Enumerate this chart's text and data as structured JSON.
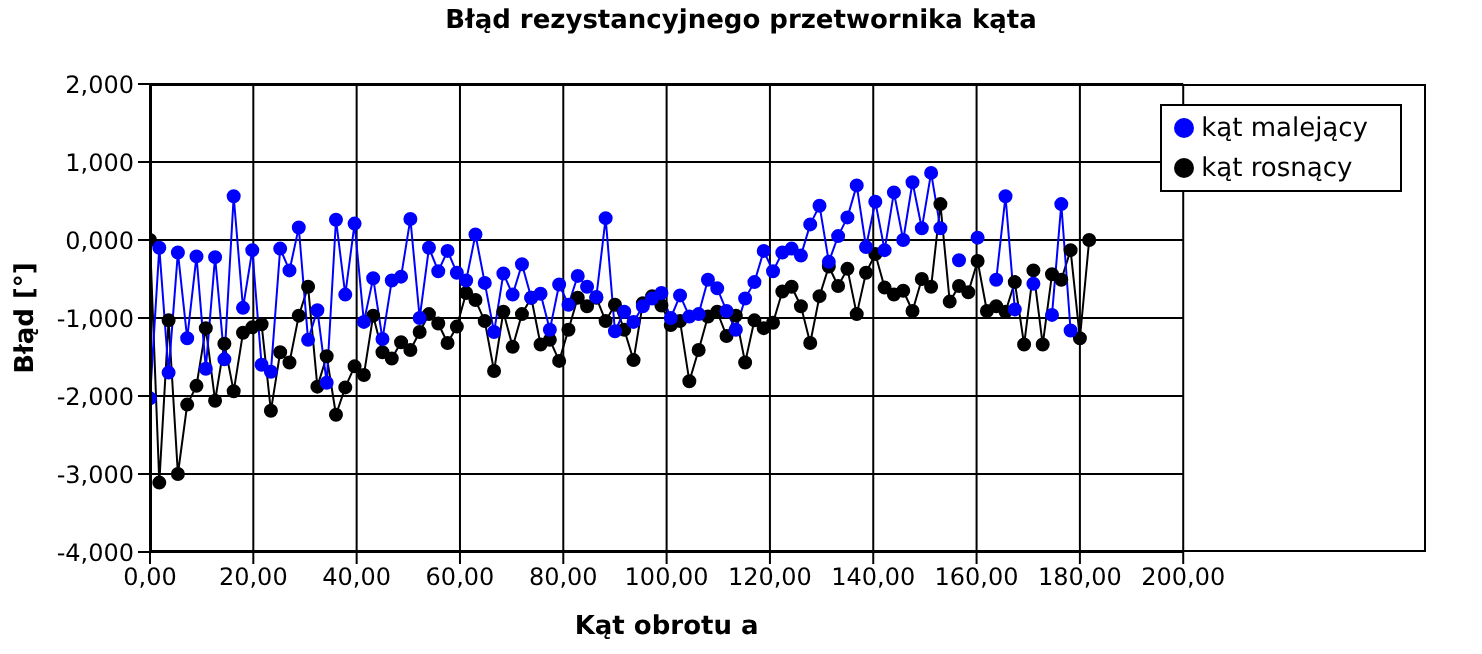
{
  "chart_data": {
    "type": "line",
    "title": "Błąd rezystancyjnego przetwornika kąta",
    "xlabel": "Kąt obrotu a",
    "ylabel": "Błąd [°]",
    "x": [
      0,
      1.8,
      3.6,
      5.4,
      7.2,
      9,
      10.8,
      12.6,
      14.4,
      16.2,
      18,
      19.8,
      21.6,
      23.4,
      25.2,
      27,
      28.8,
      30.6,
      32.4,
      34.2,
      36,
      37.8,
      39.6,
      41.4,
      43.2,
      45,
      46.8,
      48.6,
      50.4,
      52.2,
      54,
      55.8,
      57.6,
      59.4,
      61.2,
      63,
      64.8,
      66.6,
      68.4,
      70.2,
      72,
      73.8,
      75.6,
      77.4,
      79.2,
      81,
      82.8,
      84.6,
      86.4,
      88.2,
      90,
      91.8,
      93.6,
      95.4,
      97.2,
      99,
      100.8,
      102.6,
      104.4,
      106.2,
      108,
      109.8,
      111.6,
      113.4,
      115.2,
      117,
      118.8,
      120.6,
      122.4,
      124.2,
      126,
      127.8,
      129.6,
      131.4,
      133.2,
      135,
      136.8,
      138.6,
      140.4,
      142.2,
      144,
      145.8,
      147.6,
      149.4,
      151.2,
      153,
      154.8,
      156.6,
      158.4,
      160.2,
      162,
      163.8,
      165.6,
      167.4,
      169.2,
      171,
      172.8,
      174.6,
      176.4,
      178.2,
      180,
      181.8
    ],
    "series": [
      {
        "name": "kąt rosnący",
        "color": "#000000",
        "values": [
          0,
          -3.11,
          -1.03,
          -3.0,
          -2.11,
          -1.87,
          -1.13,
          -2.06,
          -1.33,
          -1.94,
          -1.19,
          -1.12,
          -1.08,
          -2.19,
          -1.44,
          -1.57,
          -0.97,
          -0.6,
          -1.88,
          -1.49,
          -2.24,
          -1.89,
          -1.62,
          -1.73,
          -0.97,
          -1.44,
          -1.52,
          -1.31,
          -1.41,
          -1.18,
          -0.95,
          -1.07,
          -1.32,
          -1.11,
          -0.68,
          -0.77,
          -1.04,
          -1.68,
          -0.92,
          -1.37,
          -0.95,
          -0.74,
          -1.34,
          -1.28,
          -1.55,
          -1.15,
          -0.74,
          -0.85,
          -0.74,
          -1.04,
          -0.83,
          -1.15,
          -1.54,
          -0.81,
          -0.72,
          -0.84,
          -1.09,
          -1.04,
          -1.81,
          -1.41,
          -0.98,
          -0.92,
          -1.23,
          -0.97,
          -1.57,
          -1.03,
          -1.13,
          -1.06,
          -0.66,
          -0.6,
          -0.85,
          -1.32,
          -0.72,
          -0.34,
          -0.59,
          -0.37,
          -0.95,
          -0.42,
          -0.18,
          -0.61,
          -0.7,
          -0.65,
          -0.91,
          -0.5,
          -0.6,
          0.46,
          -0.79,
          -0.59,
          -0.67,
          -0.27,
          -0.91,
          -0.85,
          -0.92,
          -0.54,
          -1.34,
          -0.39,
          -1.34,
          -0.44,
          -0.51,
          -0.13,
          -1.26,
          0
        ]
      },
      {
        "name": "kąt malejący",
        "color": "#0000ff",
        "values": [
          -2.03,
          -0.1,
          -1.7,
          -0.16,
          -1.26,
          -0.21,
          -1.65,
          -0.22,
          -1.53,
          0.56,
          -0.87,
          -0.13,
          -1.6,
          -1.69,
          -0.11,
          -0.39,
          0.16,
          -1.28,
          -0.9,
          -1.83,
          0.26,
          -0.7,
          0.21,
          -1.05,
          -0.49,
          -1.27,
          -0.52,
          -0.47,
          0.27,
          -1.0,
          -0.1,
          -0.4,
          -0.14,
          -0.42,
          -0.52,
          0.07,
          -0.55,
          -1.18,
          -0.43,
          -0.7,
          -0.31,
          -0.74,
          -0.69,
          -1.15,
          -0.57,
          -0.83,
          -0.46,
          -0.6,
          -0.73,
          0.28,
          -1.17,
          -0.92,
          -1.05,
          -0.85,
          -0.75,
          -0.68,
          -1.0,
          -0.71,
          -0.98,
          -0.95,
          -0.51,
          -0.62,
          -0.91,
          -1.15,
          -0.75,
          -0.54,
          -0.14,
          -0.4,
          -0.16,
          -0.11,
          -0.2,
          0.2,
          0.44,
          -0.28,
          0.05,
          0.29,
          0.7,
          -0.09,
          0.49,
          -0.13,
          0.61,
          0.0,
          0.74,
          0.15,
          0.86,
          0.15,
          null,
          -0.26,
          null,
          0.03,
          null,
          -0.51,
          0.56,
          -0.89,
          null,
          -0.56,
          null,
          -0.96,
          0.46,
          -1.16,
          null,
          null
        ]
      }
    ],
    "xlim": [
      0,
      200
    ],
    "xticks": [
      {
        "value": 0,
        "label": "0,00"
      },
      {
        "value": 20,
        "label": "20,00"
      },
      {
        "value": 40,
        "label": "40,00"
      },
      {
        "value": 60,
        "label": "60,00"
      },
      {
        "value": 80,
        "label": "80,00"
      },
      {
        "value": 100,
        "label": "100,00"
      },
      {
        "value": 120,
        "label": "120,00"
      },
      {
        "value": 140,
        "label": "140,00"
      },
      {
        "value": 160,
        "label": "160,00"
      },
      {
        "value": 180,
        "label": "180,00"
      },
      {
        "value": 200,
        "label": "200,00"
      }
    ],
    "ylim": [
      -4,
      2
    ],
    "yticks": [
      {
        "value": -4,
        "label": "-4,000"
      },
      {
        "value": -3,
        "label": "-3,000"
      },
      {
        "value": -2,
        "label": "-2,000"
      },
      {
        "value": -1,
        "label": "-1,000"
      },
      {
        "value": 0,
        "label": "0,000"
      },
      {
        "value": 1,
        "label": "1,000"
      },
      {
        "value": 2,
        "label": "2,000"
      }
    ],
    "grid": true,
    "legend": "top right",
    "marker": "circle",
    "line_style": "solid"
  }
}
